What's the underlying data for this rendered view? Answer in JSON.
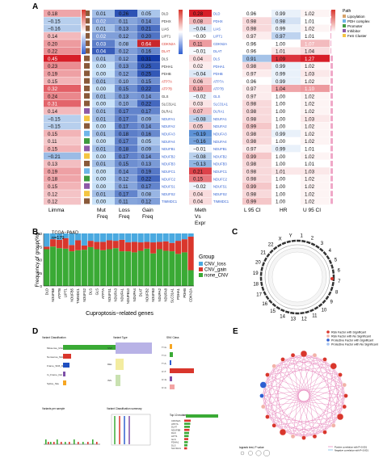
{
  "panel_letters": {
    "a": "A",
    "b": "B",
    "c": "C",
    "d": "D",
    "e": "E"
  },
  "panel_a": {
    "genes": [
      "DLD",
      "PDHX",
      "LIAS",
      "LIPT1",
      "CDKN2A",
      "DLAT",
      "DLS",
      "PDHA1",
      "PDHB",
      "ATP7A",
      "ATP7B",
      "GLS",
      "SLC31A1",
      "DLRA1",
      "NDUFA1",
      "NDUFA2",
      "NDUFA3",
      "NDUFA4",
      "NDUFB1",
      "NDUFB2",
      "NDUFB3",
      "NDUFC1",
      "NDUFC2",
      "NDUFS1",
      "NDUFS2",
      "TIMMDC1"
    ],
    "limma": [
      "0.18",
      "−0.15",
      "−0.16",
      "0.14",
      "0.20",
      "0.22",
      "0.45",
      "0.23",
      "0.19",
      "0.15",
      "0.32",
      "0.24",
      "0.31",
      "0.14",
      "−0.15",
      "−0.15",
      "0.15",
      "0.11",
      "0.15",
      "−0.21",
      "0.13",
      "0.19",
      "0.18",
      "0.15",
      "0.12",
      "0.12"
    ],
    "mut_freq": [
      "0.01",
      "0.02",
      "0.01",
      "0.02",
      "0.03",
      "0.04",
      "0.01",
      "0.00",
      "0.00",
      "0.01",
      "0.00",
      "0.01",
      "0.00",
      "0.01",
      "0.01",
      "0.00",
      "0.01",
      "0.00",
      "0.01",
      "0.00",
      "0.01",
      "0.00",
      "0.00",
      "0.00",
      "0.01",
      "0.00"
    ],
    "loss_freq": [
      "0.26",
      "0.11",
      "0.13",
      "0.12",
      "0.08",
      "0.12",
      "0.12",
      "0.13",
      "0.12",
      "0.10",
      "0.15",
      "0.13",
      "0.10",
      "0.17",
      "0.17",
      "0.17",
      "0.18",
      "0.17",
      "0.18",
      "0.17",
      "0.15",
      "0.14",
      "0.12",
      "0.11",
      "0.17",
      "0.11"
    ],
    "gain_freq": [
      "0.05",
      "0.14",
      "0.21",
      "0.20",
      "0.64",
      "0.16",
      "0.31",
      "0.25",
      "0.25",
      "0.15",
      "0.22",
      "0.14",
      "0.22",
      "0.17",
      "0.09",
      "0.14",
      "0.16",
      "0.05",
      "0.09",
      "0.14",
      "0.13",
      "0.19",
      "0.22",
      "0.17",
      "0.08",
      "0.12"
    ],
    "meth": [
      "0.28",
      "0.08",
      "−0.04",
      "−0.00",
      "0.11",
      "−0.01",
      "0.04",
      "0.02",
      "−0.04",
      "0.06",
      "0.10",
      "−0.02",
      "0.03",
      "0.07",
      "−0.08",
      "0.05",
      "−0.19",
      "−0.16",
      "−0.01",
      "−0.08",
      "−0.13",
      "0.21",
      "0.15",
      "−0.02",
      "0.04",
      "0.04"
    ],
    "l95": [
      "0.96",
      "0.98",
      "0.98",
      "0.97",
      "0.96",
      "0.96",
      "0.91",
      "0.98",
      "0.97",
      "0.96",
      "0.97",
      "0.97",
      "0.98",
      "0.98",
      "0.98",
      "0.99",
      "0.98",
      "0.98",
      "0.97",
      "0.99",
      "0.98",
      "0.98",
      "0.98",
      "0.99",
      "0.98",
      "0.99"
    ],
    "hr": [
      "0.99",
      "0.98",
      "0.99",
      "0.97",
      "1.00",
      "1.01",
      "1.09",
      "0.99",
      "0.99",
      "0.99",
      "1.04",
      "1.00",
      "1.00",
      "1.00",
      "1.00",
      "1.00",
      "0.99",
      "1.00",
      "0.99",
      "1.00",
      "1.00",
      "1.01",
      "1.00",
      "1.00",
      "1.00",
      "1.00"
    ],
    "u95": [
      "1.02",
      "1.01",
      "1.02",
      "1.01",
      "1.07",
      "1.04",
      "1.27",
      "1.02",
      "1.03",
      "1.02",
      "1.10",
      "1.02",
      "1.02",
      "1.02",
      "1.03",
      "1.02",
      "1.02",
      "1.02",
      "1.01",
      "1.02",
      "1.01",
      "1.03",
      "1.02",
      "1.02",
      "1.02",
      "1.02"
    ],
    "col_labels": {
      "limma": "Limma",
      "mut": "Mut\nFreq",
      "loss": "Loss\nFreq",
      "gain": "Gain\nFreq",
      "meth": "Meth\nVs\nExpr",
      "l95": "L 95 CI",
      "hr": "HR",
      "u95": "U 95 CI"
    },
    "legend_title": "Path",
    "legend_items": [
      {
        "label": "Lipoylation",
        "color": "#d6a36a"
      },
      {
        "label": "PDH complex",
        "color": "#6fb6e8"
      },
      {
        "label": "Promoter",
        "color": "#3f9c3f"
      },
      {
        "label": "Inhibitor",
        "color": "#8e5aa8"
      },
      {
        "label": "FeS Cluster",
        "color": "#f4c542"
      }
    ]
  },
  "panel_b": {
    "subtitle": "TCGA−PAAD\nn=179",
    "ylabel": "Frequency of group(%)",
    "xlabel": "Cuproptosis−related genes",
    "legend_title": "Group",
    "legend": [
      {
        "label": "CNV_loss",
        "color": "#4aa9e0"
      },
      {
        "label": "CNV_gain",
        "color": "#d9362c"
      },
      {
        "label": "none_CNV",
        "color": "#3aaa35"
      }
    ]
  },
  "chart_data": {
    "type": "bar",
    "stacked": true,
    "categories": [
      "DLD",
      "NDUFB8",
      "ATP7B",
      "LIPT1",
      "NDUFB5",
      "TIMMDC1",
      "NDUFS2",
      "DLS",
      "GLS",
      "ATP7A",
      "NDUFS1",
      "NDUFA3",
      "NDUFA1",
      "NDUFB10",
      "NDUFA4",
      "DLAT",
      "NDUFB2",
      "NDUFB3",
      "NDUFA2",
      "NDUFA8",
      "SLC31A1",
      "PDHA1",
      "PDHB",
      "CDKN2A"
    ],
    "ylim": [
      0,
      100
    ],
    "yticks": [
      "0",
      "25",
      "50",
      "75",
      "100"
    ],
    "series": [
      {
        "name": "none_CNV",
        "values": [
          70,
          75,
          72,
          71,
          66,
          68,
          69,
          74,
          70,
          68,
          70,
          72,
          66,
          66,
          64,
          67,
          71,
          62,
          70,
          67,
          66,
          61,
          64,
          30
        ]
      },
      {
        "name": "CNV_gain",
        "values": [
          5,
          14,
          16,
          20,
          12,
          19,
          8,
          12,
          14,
          16,
          17,
          14,
          22,
          17,
          20,
          16,
          13,
          21,
          14,
          18,
          16,
          25,
          25,
          64
        ]
      },
      {
        "name": "CNV_loss",
        "values": [
          25,
          11,
          12,
          9,
          22,
          13,
          23,
          14,
          16,
          16,
          13,
          14,
          12,
          17,
          16,
          17,
          16,
          17,
          16,
          15,
          18,
          14,
          11,
          6
        ]
      }
    ]
  },
  "panel_c": {
    "chromosomes": [
      "1",
      "2",
      "3",
      "4",
      "5",
      "6",
      "7",
      "8",
      "9",
      "10",
      "11",
      "12",
      "13",
      "14",
      "15",
      "16",
      "17",
      "18",
      "19",
      "20",
      "21",
      "22",
      "X",
      "Y"
    ]
  },
  "panel_d": {
    "headers": [
      "Variant Classification",
      "Variant Type",
      "SNV Class",
      "Variants per sample",
      "Variant Classification summary",
      "Top 10 mutated genes"
    ],
    "vc_rows": [
      "Missense_Mutation",
      "Nonsense_Mutation",
      "Frame_Shift_Del",
      "In_Frame_Del",
      "Splice_Site"
    ],
    "vt_rows": [
      "SNP",
      "DEL",
      "INS"
    ],
    "snv_rows": [
      "T>G",
      "T>C",
      "T>A",
      "C>T",
      "C>G",
      "C>A"
    ],
    "top_genes": [
      "CDKN2A",
      "ATP7A",
      "DLAT",
      "NDUFB8",
      "DLD",
      "LIPT1",
      "GLS",
      "PDHA1",
      "DLS",
      "SLC31A1"
    ]
  },
  "panel_e": {
    "legend": [
      {
        "label": "Risk Factor with Significant",
        "color": "#d9362c"
      },
      {
        "label": "Risk Factor with No Significant",
        "color": "#f2b2a8"
      },
      {
        "label": "Protective Factor with Significant",
        "color": "#2f5fd1"
      },
      {
        "label": "Protective Factor with No Significant",
        "color": "#a9c4f0"
      }
    ],
    "footer_left": "logrank test, P value",
    "footer_ticks": [
      "1e-05",
      "0.001",
      "0.01",
      "1"
    ],
    "footer_right": [
      "Postive correlation with P<0.001",
      "Negative correlation with P<0.001"
    ]
  }
}
